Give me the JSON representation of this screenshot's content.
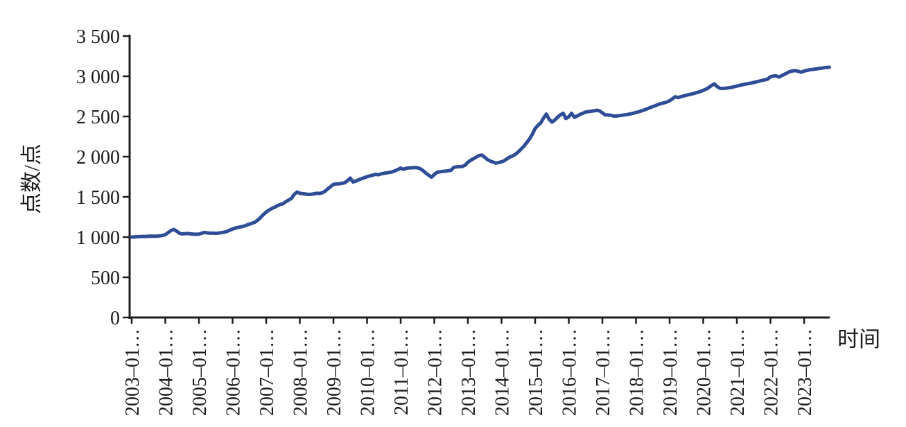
{
  "figure": {
    "y_axis_title": "点数/点",
    "x_axis_title": "时间"
  },
  "colors": {
    "line": "#2f4d96",
    "axis": "#1c1c1c",
    "text": "#1c1c1c",
    "background": "#ffffff"
  },
  "chart_data": {
    "type": "line",
    "title": "",
    "xlabel": "时间",
    "ylabel": "点数/点",
    "x_start": "2003-01",
    "x_frequency": "monthly",
    "grid": false,
    "legend": "none",
    "ylim": [
      0,
      3500
    ],
    "y_ticks": [
      0,
      500,
      1000,
      1500,
      2000,
      2500,
      3000,
      3500
    ],
    "y_tick_labels": [
      "0",
      "500",
      "1 000",
      "1 500",
      "2 000",
      "2 500",
      "3 000",
      "3 500"
    ],
    "x_tick_labels": [
      "2003–01…",
      "2004–01…",
      "2005–01…",
      "2006–01…",
      "2007–01…",
      "2008–01…",
      "2009–01…",
      "2010–01…",
      "2011–01…",
      "2012–01…",
      "2013–01…",
      "2014–01…",
      "2015–01…",
      "2016–01…",
      "2017–01…",
      "2018–01…",
      "2019–01…",
      "2020–01…",
      "2021–01…",
      "2022–01…",
      "2023–01…"
    ],
    "values": [
      1000,
      1002,
      1004,
      1006,
      1008,
      1008,
      1010,
      1012,
      1010,
      1012,
      1015,
      1020,
      1030,
      1055,
      1080,
      1095,
      1075,
      1048,
      1040,
      1042,
      1045,
      1040,
      1037,
      1035,
      1037,
      1048,
      1058,
      1052,
      1048,
      1050,
      1046,
      1050,
      1055,
      1060,
      1070,
      1085,
      1100,
      1112,
      1120,
      1128,
      1135,
      1148,
      1160,
      1172,
      1185,
      1210,
      1245,
      1280,
      1310,
      1335,
      1355,
      1370,
      1390,
      1405,
      1415,
      1440,
      1460,
      1480,
      1530,
      1560,
      1545,
      1540,
      1535,
      1530,
      1532,
      1538,
      1545,
      1542,
      1550,
      1570,
      1600,
      1628,
      1655,
      1660,
      1663,
      1668,
      1675,
      1700,
      1734,
      1685,
      1695,
      1714,
      1725,
      1738,
      1751,
      1760,
      1770,
      1780,
      1775,
      1785,
      1792,
      1798,
      1804,
      1810,
      1825,
      1840,
      1858,
      1842,
      1856,
      1860,
      1862,
      1865,
      1862,
      1850,
      1826,
      1796,
      1770,
      1745,
      1778,
      1806,
      1812,
      1816,
      1820,
      1825,
      1832,
      1868,
      1872,
      1876,
      1878,
      1895,
      1930,
      1955,
      1975,
      1995,
      2015,
      2020,
      1992,
      1962,
      1945,
      1932,
      1920,
      1928,
      1935,
      1950,
      1975,
      1995,
      2010,
      2030,
      2060,
      2095,
      2130,
      2175,
      2220,
      2280,
      2350,
      2390,
      2420,
      2480,
      2530,
      2465,
      2430,
      2455,
      2490,
      2520,
      2540,
      2475,
      2495,
      2540,
      2490,
      2505,
      2525,
      2540,
      2555,
      2560,
      2565,
      2570,
      2578,
      2568,
      2545,
      2520,
      2518,
      2515,
      2505,
      2505,
      2510,
      2515,
      2520,
      2525,
      2532,
      2540,
      2550,
      2558,
      2570,
      2582,
      2595,
      2610,
      2622,
      2635,
      2650,
      2660,
      2670,
      2680,
      2695,
      2720,
      2745,
      2735,
      2745,
      2755,
      2765,
      2772,
      2780,
      2790,
      2800,
      2810,
      2825,
      2840,
      2860,
      2885,
      2905,
      2870,
      2850,
      2848,
      2852,
      2856,
      2860,
      2870,
      2878,
      2886,
      2895,
      2902,
      2908,
      2915,
      2922,
      2930,
      2940,
      2948,
      2956,
      2965,
      2995,
      3002,
      3005,
      2990,
      3008,
      3025,
      3042,
      3060,
      3066,
      3070,
      3060,
      3050,
      3065,
      3072,
      3080,
      3085,
      3090,
      3095,
      3100,
      3105,
      3110,
      3112
    ]
  }
}
